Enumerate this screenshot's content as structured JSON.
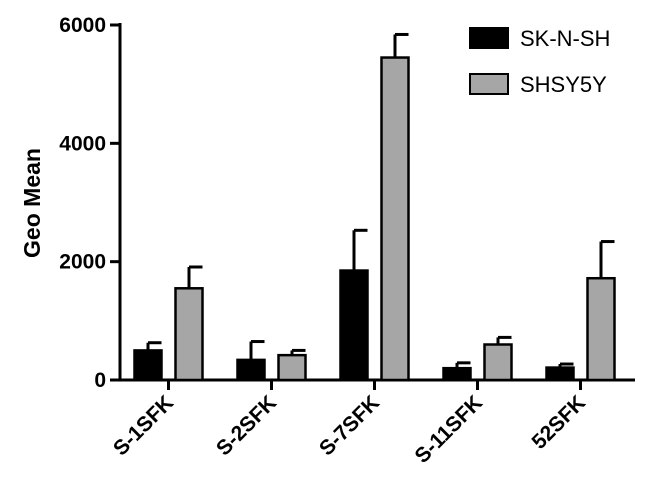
{
  "chart_data": {
    "type": "bar",
    "ylabel": "Geo Mean",
    "xlabel": "",
    "ylim": [
      0,
      6000
    ],
    "yticks": [
      0,
      2000,
      4000,
      6000
    ],
    "yticks_labels": [
      "0",
      "2000",
      "4000",
      "6000"
    ],
    "categories": [
      "S-1SFK",
      "S-2SFK",
      "S-7SFK",
      "S-11SFK",
      "52SFK"
    ],
    "series": [
      {
        "name": "SK-N-SH",
        "color": "#000000",
        "values": [
          500,
          340,
          1850,
          200,
          210
        ],
        "errors": [
          130,
          310,
          680,
          90,
          60
        ]
      },
      {
        "name": "SHSY5Y",
        "color": "#a6a6a6",
        "values": [
          1550,
          420,
          5450,
          600,
          1720
        ],
        "errors": [
          360,
          80,
          390,
          120,
          620
        ]
      }
    ],
    "legend": "top-right",
    "grid": false
  }
}
